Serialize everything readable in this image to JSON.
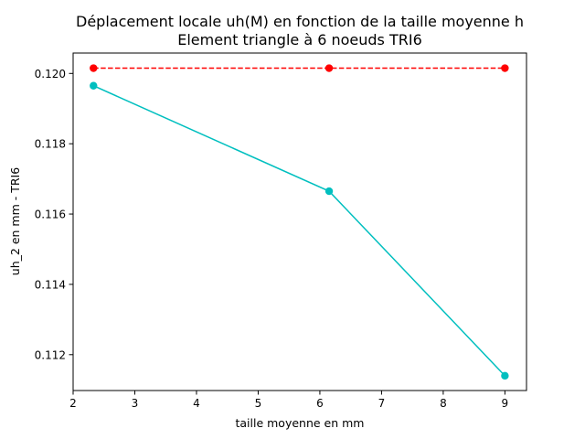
{
  "chart_data": {
    "type": "line",
    "title": "Déplacement locale uh(M) en fonction de la taille moyenne h",
    "subtitle": "Element triangle à 6 noeuds TRI6",
    "xlabel": "taille moyenne en mm",
    "ylabel": "uh_2 en mm - TRI6",
    "xlim": [
      2.0,
      9.35
    ],
    "ylim": [
      0.11098,
      0.12058
    ],
    "x_ticks": [
      2,
      3,
      4,
      5,
      6,
      7,
      8,
      9
    ],
    "x_tick_labels": [
      "2",
      "3",
      "4",
      "5",
      "6",
      "7",
      "8",
      "9"
    ],
    "y_ticks": [
      0.112,
      0.114,
      0.116,
      0.118,
      0.12
    ],
    "y_tick_labels": [
      "0.112",
      "0.114",
      "0.116",
      "0.118",
      "0.120"
    ],
    "grid": false,
    "series": [
      {
        "color": "#ff0000",
        "line_style": "dashed",
        "marker": "circle",
        "x": [
          2.33,
          6.15,
          9.0
        ],
        "y": [
          0.12015,
          0.12015,
          0.12015
        ]
      },
      {
        "color": "#00bfbf",
        "line_style": "solid",
        "marker": "circle",
        "x": [
          2.33,
          6.15,
          9.0
        ],
        "y": [
          0.11965,
          0.11665,
          0.1114
        ]
      }
    ]
  }
}
